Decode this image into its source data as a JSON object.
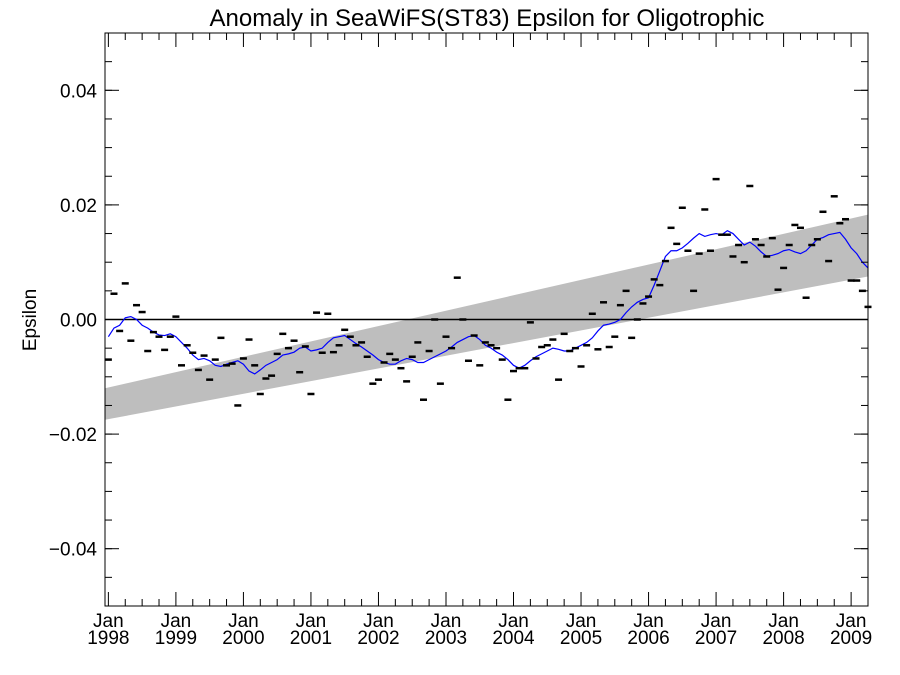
{
  "chart_data": {
    "type": "scatter",
    "title": "Anomaly in SeaWiFS(ST83) Epsilon for Oligotrophic",
    "xlabel": "",
    "ylabel": "Epsilon",
    "xlim": [
      1997.95,
      2009.25
    ],
    "ylim": [
      -0.05,
      0.05
    ],
    "y_ticks": [
      -0.04,
      -0.02,
      0.0,
      0.02,
      0.04
    ],
    "y_tick_labels": [
      "−0.04",
      "−0.02",
      "0.00",
      "0.02",
      "0.04"
    ],
    "x_ticks": [
      1998,
      1999,
      2000,
      2001,
      2002,
      2003,
      2004,
      2005,
      2006,
      2007,
      2008,
      2009
    ],
    "x_tick_labels": [
      [
        "Jan",
        "1998"
      ],
      [
        "Jan",
        "1999"
      ],
      [
        "Jan",
        "2000"
      ],
      [
        "Jan",
        "2001"
      ],
      [
        "Jan",
        "2002"
      ],
      [
        "Jan",
        "2003"
      ],
      [
        "Jan",
        "2004"
      ],
      [
        "Jan",
        "2005"
      ],
      [
        "Jan",
        "2006"
      ],
      [
        "Jan",
        "2007"
      ],
      [
        "Jan",
        "2008"
      ],
      [
        "Jan",
        "2009"
      ]
    ],
    "zero_line": 0.0,
    "trend_band": {
      "x": [
        1997.95,
        2009.25
      ],
      "lower": [
        -0.0175,
        0.0075
      ],
      "upper": [
        -0.012,
        0.0183
      ],
      "color": "#bebebe"
    },
    "series": [
      {
        "kind": "monthly_anomaly",
        "marker": "dash",
        "color": "#000000",
        "x": [
          1998.0,
          1998.083,
          1998.167,
          1998.25,
          1998.333,
          1998.417,
          1998.5,
          1998.583,
          1998.667,
          1998.75,
          1998.833,
          1998.917,
          1999.0,
          1999.083,
          1999.167,
          1999.25,
          1999.333,
          1999.417,
          1999.5,
          1999.583,
          1999.667,
          1999.75,
          1999.833,
          1999.917,
          2000.0,
          2000.083,
          2000.167,
          2000.25,
          2000.333,
          2000.417,
          2000.5,
          2000.583,
          2000.667,
          2000.75,
          2000.833,
          2000.917,
          2001.0,
          2001.083,
          2001.167,
          2001.25,
          2001.333,
          2001.417,
          2001.5,
          2001.583,
          2001.667,
          2001.75,
          2001.833,
          2001.917,
          2002.0,
          2002.083,
          2002.167,
          2002.25,
          2002.333,
          2002.417,
          2002.5,
          2002.583,
          2002.667,
          2002.75,
          2002.833,
          2002.917,
          2003.0,
          2003.083,
          2003.167,
          2003.25,
          2003.333,
          2003.417,
          2003.5,
          2003.583,
          2003.667,
          2003.75,
          2003.833,
          2003.917,
          2004.0,
          2004.083,
          2004.167,
          2004.25,
          2004.333,
          2004.417,
          2004.5,
          2004.583,
          2004.667,
          2004.75,
          2004.833,
          2004.917,
          2005.0,
          2005.083,
          2005.167,
          2005.25,
          2005.333,
          2005.417,
          2005.5,
          2005.583,
          2005.667,
          2005.75,
          2005.833,
          2005.917,
          2006.0,
          2006.083,
          2006.167,
          2006.25,
          2006.333,
          2006.417,
          2006.5,
          2006.583,
          2006.667,
          2006.75,
          2006.833,
          2006.917,
          2007.0,
          2007.083,
          2007.167,
          2007.25,
          2007.333,
          2007.417,
          2007.5,
          2007.583,
          2007.667,
          2007.75,
          2007.833,
          2007.917,
          2008.0,
          2008.083,
          2008.167,
          2008.25,
          2008.333,
          2008.417,
          2008.5,
          2008.583,
          2008.667,
          2008.75,
          2008.833,
          2008.917,
          2009.0,
          2009.083,
          2009.167,
          2009.25
        ],
        "y": [
          -0.007,
          0.0045,
          -0.002,
          0.0063,
          -0.0037,
          0.0025,
          0.0013,
          -0.0055,
          -0.0022,
          -0.003,
          -0.0053,
          -0.003,
          0.0005,
          -0.008,
          -0.0045,
          -0.0058,
          -0.0088,
          -0.0063,
          -0.0105,
          -0.007,
          -0.0032,
          -0.008,
          -0.0077,
          -0.015,
          -0.0068,
          -0.0035,
          -0.008,
          -0.013,
          -0.0103,
          -0.0098,
          -0.006,
          -0.0025,
          -0.005,
          -0.0037,
          -0.0092,
          -0.0047,
          -0.013,
          0.0012,
          -0.0058,
          0.001,
          -0.0057,
          -0.0045,
          -0.0018,
          -0.003,
          -0.0045,
          -0.004,
          -0.0065,
          -0.0112,
          -0.0105,
          -0.0075,
          -0.006,
          -0.007,
          -0.0085,
          -0.0108,
          -0.0065,
          -0.004,
          -0.014,
          -0.0055,
          0.0,
          -0.0112,
          -0.003,
          -0.005,
          0.0073,
          0.0,
          -0.0072,
          -0.0028,
          -0.008,
          -0.004,
          -0.0045,
          -0.005,
          -0.007,
          -0.014,
          -0.009,
          -0.0085,
          -0.0085,
          -0.0005,
          -0.0068,
          -0.0048,
          -0.0045,
          -0.0035,
          -0.0105,
          -0.0025,
          -0.0055,
          -0.005,
          -0.0082,
          -0.0045,
          0.001,
          -0.0052,
          0.003,
          -0.0048,
          -0.003,
          0.0025,
          0.005,
          -0.0032,
          0.0,
          0.0028,
          0.004,
          0.007,
          0.006,
          0.0102,
          0.016,
          0.0132,
          0.0195,
          0.012,
          0.005,
          0.0115,
          0.0192,
          0.012,
          0.0245,
          0.0148,
          0.0148,
          0.011,
          0.013,
          0.01,
          0.0233,
          0.014,
          0.013,
          0.011,
          0.0142,
          0.0052,
          0.009,
          0.013,
          0.0165,
          0.016,
          0.0038,
          0.013,
          0.014,
          0.0188,
          0.0102,
          0.0215,
          0.0168,
          0.0175,
          0.0068,
          0.0068,
          0.005,
          0.0022
        ]
      },
      {
        "kind": "running_mean",
        "color": "#0000ff",
        "x": [
          1998.0,
          1998.083,
          1998.167,
          1998.25,
          1998.333,
          1998.417,
          1998.5,
          1998.583,
          1998.667,
          1998.75,
          1998.833,
          1998.917,
          1999.0,
          1999.083,
          1999.167,
          1999.25,
          1999.333,
          1999.417,
          1999.5,
          1999.583,
          1999.667,
          1999.75,
          1999.833,
          1999.917,
          2000.0,
          2000.083,
          2000.167,
          2000.25,
          2000.333,
          2000.417,
          2000.5,
          2000.583,
          2000.667,
          2000.75,
          2000.833,
          2000.917,
          2001.0,
          2001.083,
          2001.167,
          2001.25,
          2001.333,
          2001.417,
          2001.5,
          2001.583,
          2001.667,
          2001.75,
          2001.833,
          2001.917,
          2002.0,
          2002.083,
          2002.167,
          2002.25,
          2002.333,
          2002.417,
          2002.5,
          2002.583,
          2002.667,
          2002.75,
          2002.833,
          2002.917,
          2003.0,
          2003.083,
          2003.167,
          2003.25,
          2003.333,
          2003.417,
          2003.5,
          2003.583,
          2003.667,
          2003.75,
          2003.833,
          2003.917,
          2004.0,
          2004.083,
          2004.167,
          2004.25,
          2004.333,
          2004.417,
          2004.5,
          2004.583,
          2004.667,
          2004.75,
          2004.833,
          2004.917,
          2005.0,
          2005.083,
          2005.167,
          2005.25,
          2005.333,
          2005.417,
          2005.5,
          2005.583,
          2005.667,
          2005.75,
          2005.833,
          2005.917,
          2006.0,
          2006.083,
          2006.167,
          2006.25,
          2006.333,
          2006.417,
          2006.5,
          2006.583,
          2006.667,
          2006.75,
          2006.833,
          2006.917,
          2007.0,
          2007.083,
          2007.167,
          2007.25,
          2007.333,
          2007.417,
          2007.5,
          2007.583,
          2007.667,
          2007.75,
          2007.833,
          2007.917,
          2008.0,
          2008.083,
          2008.167,
          2008.25,
          2008.333,
          2008.417,
          2008.5,
          2008.583,
          2008.667,
          2008.75,
          2008.833,
          2008.917,
          2009.0,
          2009.083,
          2009.167,
          2009.25
        ],
        "y": [
          -0.003,
          -0.0015,
          -0.001,
          0.0003,
          0.0005,
          0.0,
          -0.001,
          -0.0015,
          -0.0022,
          -0.0027,
          -0.0028,
          -0.0025,
          -0.003,
          -0.004,
          -0.005,
          -0.0062,
          -0.007,
          -0.0068,
          -0.0072,
          -0.008,
          -0.0082,
          -0.0078,
          -0.0075,
          -0.0072,
          -0.0078,
          -0.009,
          -0.0095,
          -0.0088,
          -0.008,
          -0.0075,
          -0.007,
          -0.0062,
          -0.006,
          -0.0057,
          -0.005,
          -0.0048,
          -0.0055,
          -0.0053,
          -0.005,
          -0.004,
          -0.0032,
          -0.003,
          -0.0028,
          -0.0035,
          -0.0042,
          -0.0048,
          -0.0055,
          -0.0062,
          -0.007,
          -0.0075,
          -0.0078,
          -0.0078,
          -0.0072,
          -0.0068,
          -0.007,
          -0.0075,
          -0.0075,
          -0.007,
          -0.0065,
          -0.006,
          -0.0055,
          -0.0048,
          -0.004,
          -0.0035,
          -0.003,
          -0.0028,
          -0.0035,
          -0.0045,
          -0.005,
          -0.0057,
          -0.0062,
          -0.007,
          -0.008,
          -0.0085,
          -0.008,
          -0.0072,
          -0.0065,
          -0.006,
          -0.0055,
          -0.005,
          -0.0052,
          -0.0055,
          -0.0055,
          -0.005,
          -0.0045,
          -0.004,
          -0.0032,
          -0.002,
          -0.001,
          -0.0008,
          -0.0005,
          0.0,
          0.0012,
          0.0022,
          0.003,
          0.0035,
          0.0038,
          0.006,
          0.0085,
          0.011,
          0.012,
          0.012,
          0.0125,
          0.0133,
          0.0142,
          0.015,
          0.0145,
          0.0148,
          0.015,
          0.0148,
          0.0155,
          0.015,
          0.014,
          0.013,
          0.0135,
          0.0128,
          0.0118,
          0.011,
          0.0112,
          0.0115,
          0.012,
          0.0122,
          0.0118,
          0.0115,
          0.012,
          0.013,
          0.014,
          0.0143,
          0.0148,
          0.015,
          0.0152,
          0.014,
          0.0125,
          0.0115,
          0.01,
          0.009
        ]
      }
    ]
  }
}
